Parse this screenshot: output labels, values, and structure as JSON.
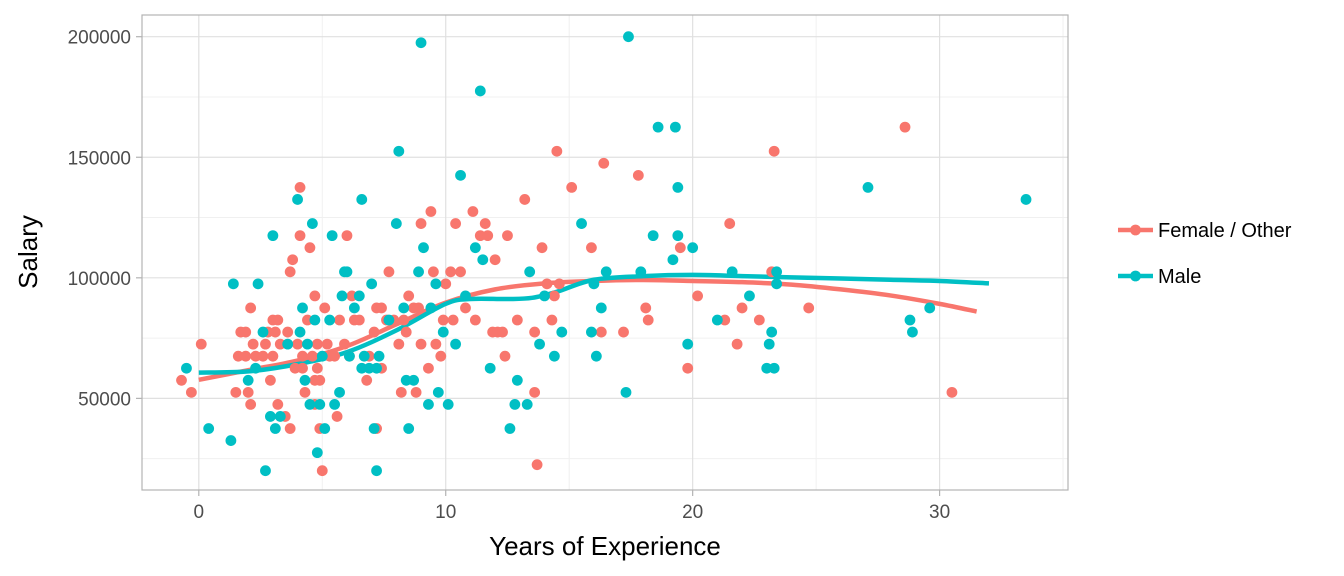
{
  "chart_data": {
    "type": "scatter",
    "title": "",
    "xlabel": "Years of Experience",
    "ylabel": "Salary",
    "xlim": [
      -2.3,
      35.2
    ],
    "ylim": [
      12000,
      209000
    ],
    "x_ticks": [
      0,
      10,
      20,
      30
    ],
    "y_ticks": [
      50000,
      100000,
      150000,
      200000
    ],
    "x_tick_labels": [
      "0",
      "10",
      "20",
      "30"
    ],
    "y_tick_labels": [
      "50000",
      "100000",
      "150000",
      "200000"
    ],
    "grid": true,
    "legend_position": "right",
    "colors": {
      "Female / Other": "#F8766D",
      "Male": "#00BFC4"
    },
    "series": [
      {
        "name": "Female / Other",
        "color": "#F8766D",
        "points": [
          [
            -0.7,
            57500
          ],
          [
            -0.3,
            52500
          ],
          [
            0.1,
            72500
          ],
          [
            1.5,
            52500
          ],
          [
            1.6,
            67500
          ],
          [
            1.7,
            77500
          ],
          [
            1.9,
            77500
          ],
          [
            1.9,
            67500
          ],
          [
            2.0,
            52500
          ],
          [
            2.1,
            87500
          ],
          [
            2.1,
            47500
          ],
          [
            2.2,
            72500
          ],
          [
            2.3,
            67500
          ],
          [
            2.6,
            67500
          ],
          [
            2.7,
            72500
          ],
          [
            2.8,
            77500
          ],
          [
            2.9,
            57500
          ],
          [
            3.0,
            67500
          ],
          [
            3.0,
            82500
          ],
          [
            3.1,
            77500
          ],
          [
            3.2,
            47500
          ],
          [
            3.2,
            82500
          ],
          [
            3.3,
            72500
          ],
          [
            3.5,
            42500
          ],
          [
            3.6,
            77500
          ],
          [
            3.7,
            37500
          ],
          [
            3.7,
            102500
          ],
          [
            3.8,
            107500
          ],
          [
            3.9,
            62500
          ],
          [
            4.0,
            72500
          ],
          [
            4.1,
            137500
          ],
          [
            4.1,
            117500
          ],
          [
            4.2,
            67500
          ],
          [
            4.2,
            62500
          ],
          [
            4.3,
            52500
          ],
          [
            4.4,
            82500
          ],
          [
            4.5,
            112500
          ],
          [
            4.6,
            67500
          ],
          [
            4.7,
            92500
          ],
          [
            4.7,
            57500
          ],
          [
            4.7,
            47500
          ],
          [
            4.8,
            62500
          ],
          [
            4.8,
            72500
          ],
          [
            4.9,
            57500
          ],
          [
            4.9,
            37500
          ],
          [
            5.0,
            20000
          ],
          [
            5.1,
            87500
          ],
          [
            5.2,
            72500
          ],
          [
            5.3,
            67500
          ],
          [
            5.5,
            67500
          ],
          [
            5.6,
            42500
          ],
          [
            5.7,
            82500
          ],
          [
            5.9,
            72500
          ],
          [
            6.0,
            117500
          ],
          [
            6.1,
            67500
          ],
          [
            6.2,
            92500
          ],
          [
            6.3,
            82500
          ],
          [
            6.5,
            82500
          ],
          [
            6.8,
            57500
          ],
          [
            6.9,
            67500
          ],
          [
            7.1,
            77500
          ],
          [
            7.2,
            87500
          ],
          [
            7.2,
            37500
          ],
          [
            7.4,
            87500
          ],
          [
            7.4,
            62500
          ],
          [
            7.6,
            82500
          ],
          [
            7.7,
            102500
          ],
          [
            7.9,
            82500
          ],
          [
            8.1,
            72500
          ],
          [
            8.2,
            52500
          ],
          [
            8.3,
            82500
          ],
          [
            8.4,
            77500
          ],
          [
            8.5,
            92500
          ],
          [
            8.7,
            87500
          ],
          [
            8.8,
            52500
          ],
          [
            8.9,
            87500
          ],
          [
            9.0,
            122500
          ],
          [
            9.0,
            72500
          ],
          [
            9.3,
            62500
          ],
          [
            9.4,
            127500
          ],
          [
            9.5,
            102500
          ],
          [
            9.6,
            72500
          ],
          [
            9.8,
            67500
          ],
          [
            9.9,
            82500
          ],
          [
            10.0,
            97500
          ],
          [
            10.2,
            102500
          ],
          [
            10.3,
            82500
          ],
          [
            10.4,
            122500
          ],
          [
            10.6,
            102500
          ],
          [
            10.8,
            87500
          ],
          [
            11.1,
            127500
          ],
          [
            11.2,
            82500
          ],
          [
            11.4,
            117500
          ],
          [
            11.6,
            122500
          ],
          [
            11.7,
            117500
          ],
          [
            11.9,
            77500
          ],
          [
            12.0,
            107500
          ],
          [
            12.1,
            77500
          ],
          [
            12.3,
            77500
          ],
          [
            12.4,
            67500
          ],
          [
            12.5,
            117500
          ],
          [
            12.9,
            82500
          ],
          [
            13.2,
            132500
          ],
          [
            13.6,
            77500
          ],
          [
            13.6,
            52500
          ],
          [
            13.7,
            22500
          ],
          [
            13.9,
            112500
          ],
          [
            14.1,
            97500
          ],
          [
            14.3,
            82500
          ],
          [
            14.4,
            92500
          ],
          [
            14.5,
            152500
          ],
          [
            14.6,
            97500
          ],
          [
            15.1,
            137500
          ],
          [
            15.9,
            112500
          ],
          [
            16.3,
            77500
          ],
          [
            16.4,
            147500
          ],
          [
            17.2,
            77500
          ],
          [
            17.8,
            142500
          ],
          [
            18.1,
            87500
          ],
          [
            18.2,
            82500
          ],
          [
            19.5,
            112500
          ],
          [
            19.8,
            62500
          ],
          [
            20.2,
            92500
          ],
          [
            21.3,
            82500
          ],
          [
            21.5,
            122500
          ],
          [
            21.8,
            72500
          ],
          [
            22.0,
            87500
          ],
          [
            22.7,
            82500
          ],
          [
            23.2,
            102500
          ],
          [
            23.3,
            152500
          ],
          [
            24.7,
            87500
          ],
          [
            28.6,
            162500
          ],
          [
            30.5,
            52500
          ]
        ],
        "trend": [
          [
            0.0,
            57700
          ],
          [
            2.0,
            61700
          ],
          [
            4.0,
            65700
          ],
          [
            6.0,
            71700
          ],
          [
            8.0,
            80700
          ],
          [
            10.0,
            89700
          ],
          [
            12.0,
            95200
          ],
          [
            14.0,
            97700
          ],
          [
            16.0,
            98700
          ],
          [
            18.0,
            99100
          ],
          [
            20.0,
            98700
          ],
          [
            22.0,
            98200
          ],
          [
            24.0,
            97200
          ],
          [
            26.0,
            95200
          ],
          [
            28.0,
            92700
          ],
          [
            30.0,
            89200
          ],
          [
            31.5,
            86000
          ]
        ]
      },
      {
        "name": "Male",
        "color": "#00BFC4",
        "points": [
          [
            -0.5,
            62500
          ],
          [
            0.4,
            37500
          ],
          [
            1.3,
            32500
          ],
          [
            1.4,
            97500
          ],
          [
            2.0,
            57500
          ],
          [
            2.3,
            62500
          ],
          [
            2.4,
            97500
          ],
          [
            2.6,
            77500
          ],
          [
            2.7,
            20000
          ],
          [
            2.9,
            42500
          ],
          [
            3.0,
            117500
          ],
          [
            3.1,
            37500
          ],
          [
            3.3,
            42500
          ],
          [
            3.6,
            72500
          ],
          [
            4.0,
            132500
          ],
          [
            4.1,
            77500
          ],
          [
            4.2,
            87500
          ],
          [
            4.3,
            57500
          ],
          [
            4.4,
            72500
          ],
          [
            4.5,
            47500
          ],
          [
            4.6,
            122500
          ],
          [
            4.7,
            82500
          ],
          [
            4.8,
            27500
          ],
          [
            4.9,
            47500
          ],
          [
            5.0,
            67500
          ],
          [
            5.1,
            37500
          ],
          [
            5.3,
            82500
          ],
          [
            5.4,
            117500
          ],
          [
            5.5,
            47500
          ],
          [
            5.7,
            52500
          ],
          [
            5.8,
            92500
          ],
          [
            5.9,
            102500
          ],
          [
            6.0,
            102500
          ],
          [
            6.1,
            67500
          ],
          [
            6.3,
            87500
          ],
          [
            6.5,
            92500
          ],
          [
            6.6,
            62500
          ],
          [
            6.6,
            132500
          ],
          [
            6.7,
            67500
          ],
          [
            6.9,
            62500
          ],
          [
            7.0,
            97500
          ],
          [
            7.1,
            37500
          ],
          [
            7.2,
            62500
          ],
          [
            7.2,
            20000
          ],
          [
            7.3,
            67500
          ],
          [
            7.7,
            82500
          ],
          [
            8.0,
            122500
          ],
          [
            8.1,
            152500
          ],
          [
            8.3,
            87500
          ],
          [
            8.4,
            57500
          ],
          [
            8.5,
            37500
          ],
          [
            8.7,
            57500
          ],
          [
            8.9,
            102500
          ],
          [
            9.0,
            197500
          ],
          [
            9.1,
            112500
          ],
          [
            9.3,
            47500
          ],
          [
            9.4,
            87500
          ],
          [
            9.6,
            97500
          ],
          [
            9.7,
            52500
          ],
          [
            9.9,
            77500
          ],
          [
            10.1,
            47500
          ],
          [
            10.4,
            72500
          ],
          [
            10.6,
            142500
          ],
          [
            10.8,
            92500
          ],
          [
            11.2,
            112500
          ],
          [
            11.4,
            177500
          ],
          [
            11.5,
            107500
          ],
          [
            11.8,
            62500
          ],
          [
            12.6,
            37500
          ],
          [
            12.8,
            47500
          ],
          [
            12.9,
            57500
          ],
          [
            13.3,
            47500
          ],
          [
            13.4,
            102500
          ],
          [
            13.8,
            72500
          ],
          [
            14.0,
            92500
          ],
          [
            14.4,
            67500
          ],
          [
            14.7,
            77500
          ],
          [
            15.5,
            122500
          ],
          [
            15.9,
            77500
          ],
          [
            16.0,
            97500
          ],
          [
            16.1,
            67500
          ],
          [
            16.3,
            87500
          ],
          [
            16.5,
            102500
          ],
          [
            17.3,
            52500
          ],
          [
            17.4,
            200000
          ],
          [
            17.9,
            102500
          ],
          [
            18.4,
            117500
          ],
          [
            18.6,
            162500
          ],
          [
            19.2,
            107500
          ],
          [
            19.3,
            162500
          ],
          [
            19.4,
            137500
          ],
          [
            19.4,
            117500
          ],
          [
            19.8,
            72500
          ],
          [
            20.0,
            112500
          ],
          [
            21.0,
            82500
          ],
          [
            21.6,
            102500
          ],
          [
            22.3,
            92500
          ],
          [
            23.0,
            62500
          ],
          [
            23.1,
            72500
          ],
          [
            23.2,
            77500
          ],
          [
            23.3,
            62500
          ],
          [
            23.4,
            97500
          ],
          [
            23.4,
            102500
          ],
          [
            27.1,
            137500
          ],
          [
            28.8,
            82500
          ],
          [
            28.9,
            77500
          ],
          [
            29.6,
            87500
          ],
          [
            33.5,
            132500
          ]
        ],
        "trend": [
          [
            0.0,
            60700
          ],
          [
            2.0,
            61200
          ],
          [
            4.0,
            64200
          ],
          [
            6.0,
            69200
          ],
          [
            8.0,
            78200
          ],
          [
            10.0,
            89200
          ],
          [
            11.0,
            91200
          ],
          [
            12.5,
            91200
          ],
          [
            13.5,
            91700
          ],
          [
            14.5,
            94200
          ],
          [
            16.0,
            99200
          ],
          [
            18.0,
            100700
          ],
          [
            20.0,
            101200
          ],
          [
            22.0,
            100700
          ],
          [
            24.0,
            100200
          ],
          [
            26.0,
            99700
          ],
          [
            28.0,
            99200
          ],
          [
            30.0,
            98700
          ],
          [
            32.0,
            97700
          ]
        ]
      }
    ]
  }
}
